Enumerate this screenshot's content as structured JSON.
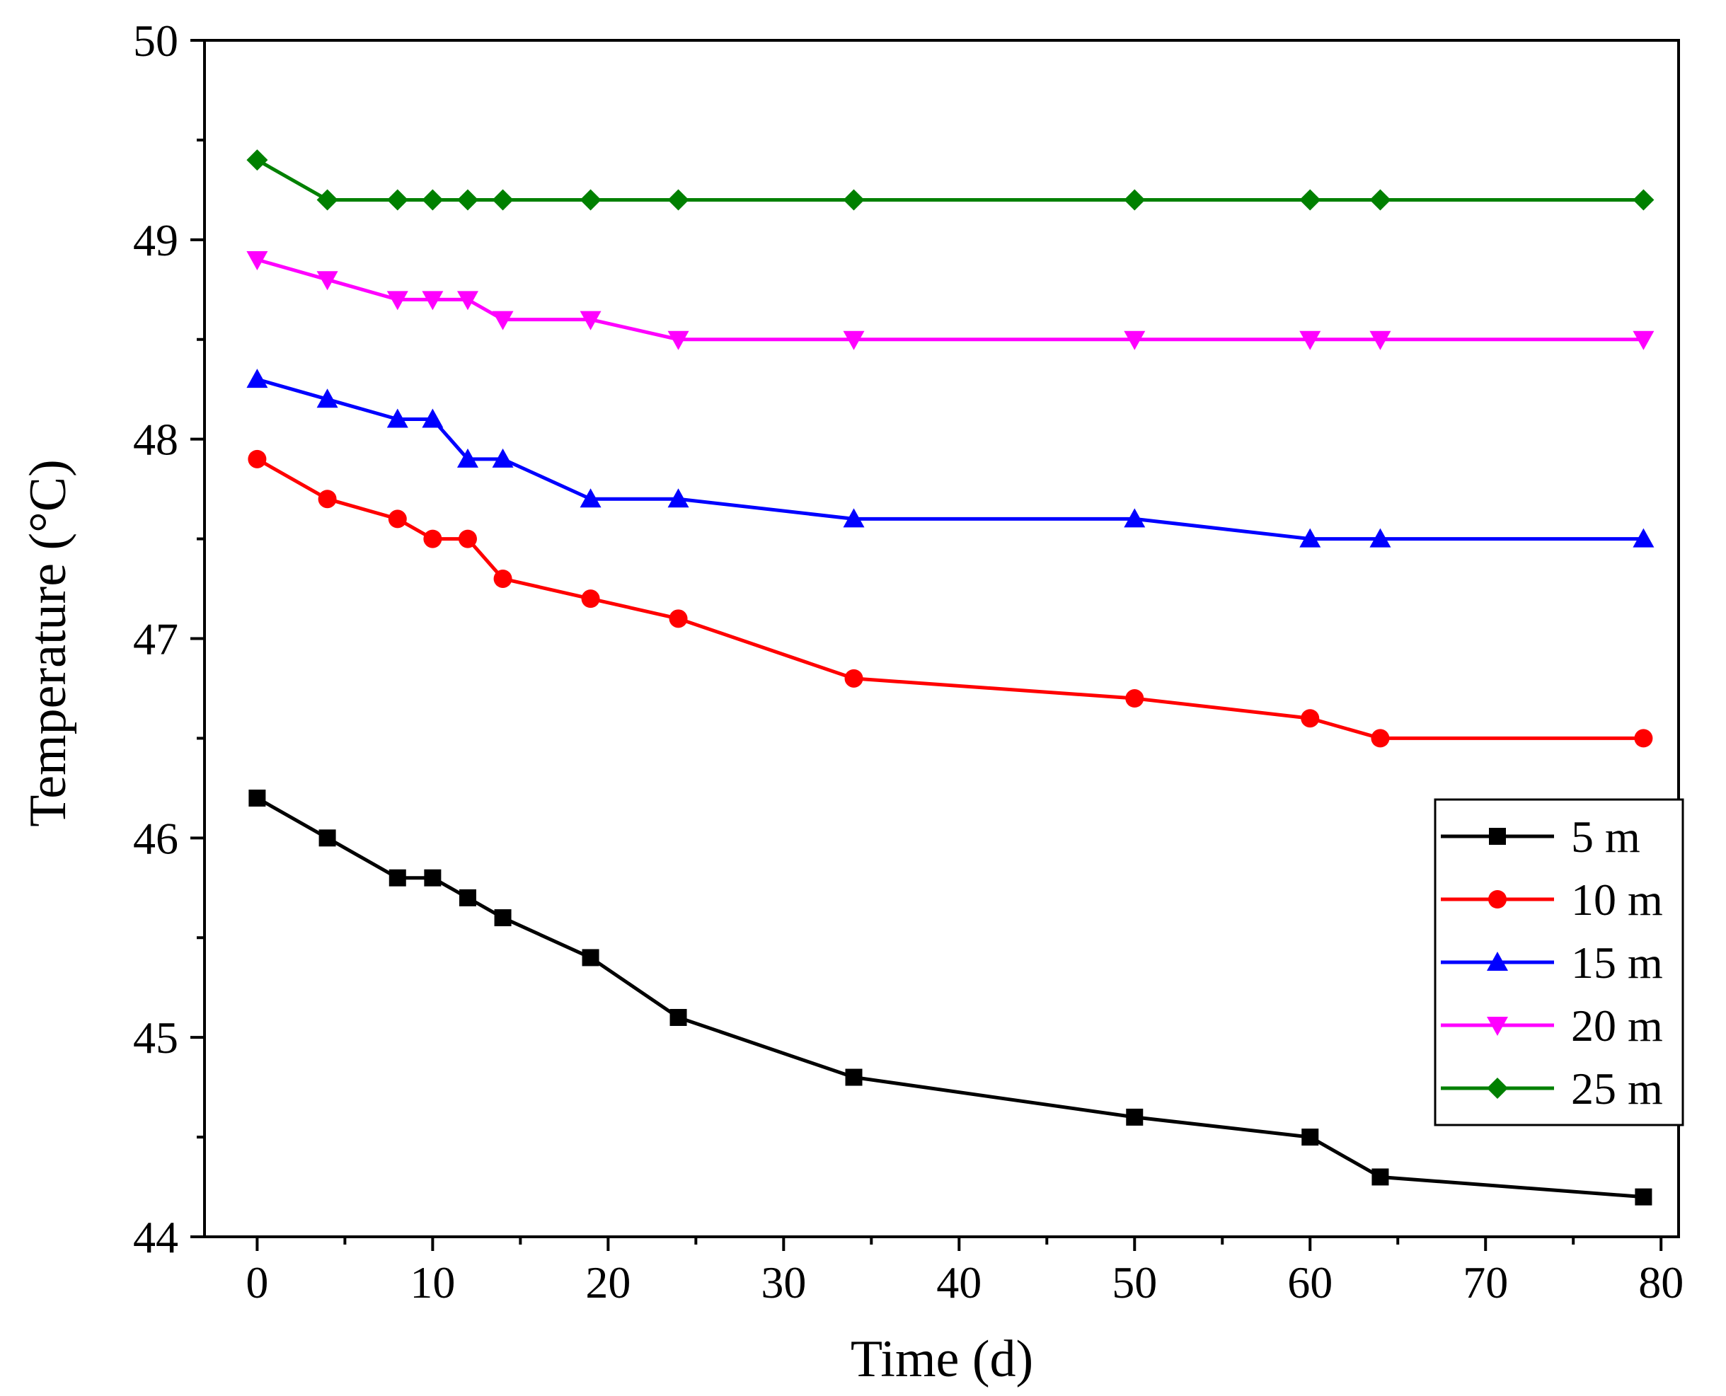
{
  "chart_data": {
    "type": "line",
    "title": "",
    "xlabel": "Time (d)",
    "ylabel": "Temperature (°C)",
    "xlim": [
      -3,
      81
    ],
    "ylim": [
      44,
      50
    ],
    "x_ticks": [
      0,
      10,
      20,
      30,
      40,
      50,
      60,
      70,
      80
    ],
    "y_ticks": [
      44,
      45,
      46,
      47,
      48,
      49,
      50
    ],
    "grid": false,
    "legend_position": "bottom-right",
    "x": [
      0,
      4,
      8,
      10,
      12,
      14,
      19,
      24,
      34,
      50,
      60,
      64,
      79
    ],
    "series": [
      {
        "name": "5 m",
        "color": "#000000",
        "marker": "square",
        "values": [
          46.2,
          46.0,
          45.8,
          45.8,
          45.7,
          45.6,
          45.4,
          45.1,
          44.8,
          44.6,
          44.5,
          44.3,
          44.2
        ]
      },
      {
        "name": "10 m",
        "color": "#ff0000",
        "marker": "circle",
        "values": [
          47.9,
          47.7,
          47.6,
          47.5,
          47.5,
          47.3,
          47.2,
          47.1,
          46.8,
          46.7,
          46.6,
          46.5,
          46.5
        ]
      },
      {
        "name": "15 m",
        "color": "#0000ff",
        "marker": "triangle-up",
        "values": [
          48.3,
          48.2,
          48.1,
          48.1,
          47.9,
          47.9,
          47.7,
          47.7,
          47.6,
          47.6,
          47.5,
          47.5,
          47.5
        ]
      },
      {
        "name": "20 m",
        "color": "#ff00ff",
        "marker": "triangle-down",
        "values": [
          48.9,
          48.8,
          48.7,
          48.7,
          48.7,
          48.6,
          48.6,
          48.5,
          48.5,
          48.5,
          48.5,
          48.5,
          48.5
        ]
      },
      {
        "name": "25 m",
        "color": "#008000",
        "marker": "diamond",
        "values": [
          49.4,
          49.2,
          49.2,
          49.2,
          49.2,
          49.2,
          49.2,
          49.2,
          49.2,
          49.2,
          49.2,
          49.2,
          49.2
        ]
      }
    ]
  }
}
